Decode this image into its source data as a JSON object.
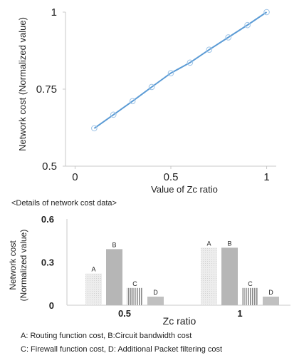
{
  "chart_data": [
    {
      "type": "line",
      "xlabel": "Value of Zc ratio",
      "ylabel": "Network cost (Normalized value)",
      "xlim": [
        -0.05,
        1.05
      ],
      "ylim": [
        0.5,
        1.0
      ],
      "x_ticks": [
        "0",
        "0.5",
        "1"
      ],
      "y_ticks": [
        "0.5",
        "0.75",
        "1"
      ],
      "grid": false,
      "color": "#5b9bd5",
      "series": [
        {
          "x": [
            0.1,
            0.2,
            0.3,
            0.4,
            0.5,
            0.6,
            0.7,
            0.8,
            0.9,
            1.0
          ],
          "y": [
            0.623,
            0.667,
            0.711,
            0.757,
            0.802,
            0.836,
            0.878,
            0.918,
            0.958,
            1.0
          ]
        }
      ]
    },
    {
      "type": "bar",
      "title": "<Details of network cost data>",
      "xlabel": "Zc ratio",
      "ylabel": [
        "Network cost",
        "(Normalized value)"
      ],
      "ylim": [
        0,
        0.6
      ],
      "y_ticks": [
        "0",
        "0.3",
        "0.6"
      ],
      "categories": [
        "0.5",
        "1"
      ],
      "grid": false,
      "series": [
        {
          "label": "A",
          "values": [
            0.22,
            0.4
          ],
          "color": "#e4e4e4",
          "pattern": "light-dotted"
        },
        {
          "label": "B",
          "values": [
            0.39,
            0.4
          ],
          "color": "#b6b6b6",
          "pattern": "solid"
        },
        {
          "label": "C",
          "values": [
            0.12,
            0.12
          ],
          "color": "#bcbcbc",
          "pattern": "vertical-stripes"
        },
        {
          "label": "D",
          "values": [
            0.06,
            0.06
          ],
          "color": "#c0c0c0",
          "pattern": "solid"
        }
      ],
      "notes": [
        "A: Routing function cost, B:Circuit bandwidth cost",
        "C: Firewall function cost, D: Additional Packet filtering cost"
      ]
    }
  ]
}
